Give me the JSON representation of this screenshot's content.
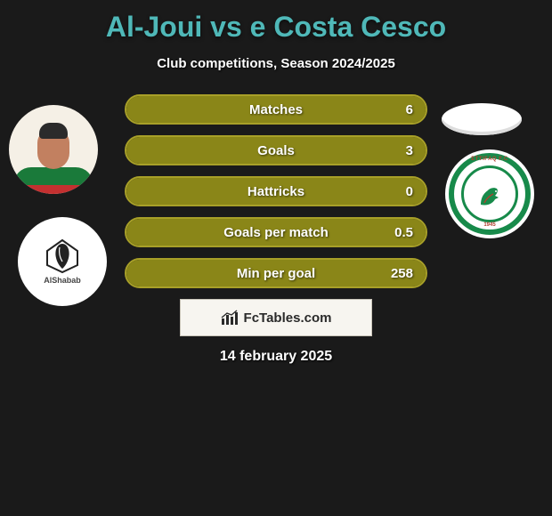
{
  "header": {
    "title": "Al-Joui vs e Costa Cesco",
    "title_color": "#4fb8b8",
    "subtitle": "Club competitions, Season 2024/2025"
  },
  "left_avatars": {
    "player_badge": "player-portrait",
    "club_name": "AlShabab"
  },
  "right_avatars": {
    "top_placeholder": "blank-oval",
    "club_name": "ETTIFAQ F.C",
    "club_year": "1945"
  },
  "stats": {
    "border_color": "#a8a028",
    "fill_color": "#8a8618",
    "bg_color": "#2c2c14",
    "rows": [
      {
        "label": "Matches",
        "value": "6",
        "fill_pct": 100
      },
      {
        "label": "Goals",
        "value": "3",
        "fill_pct": 100
      },
      {
        "label": "Hattricks",
        "value": "0",
        "fill_pct": 100
      },
      {
        "label": "Goals per match",
        "value": "0.5",
        "fill_pct": 100
      },
      {
        "label": "Min per goal",
        "value": "258",
        "fill_pct": 100
      }
    ]
  },
  "watermark": {
    "text": "FcTables.com"
  },
  "footer": {
    "date": "14 february 2025"
  },
  "colors": {
    "background": "#1a1a1a"
  }
}
